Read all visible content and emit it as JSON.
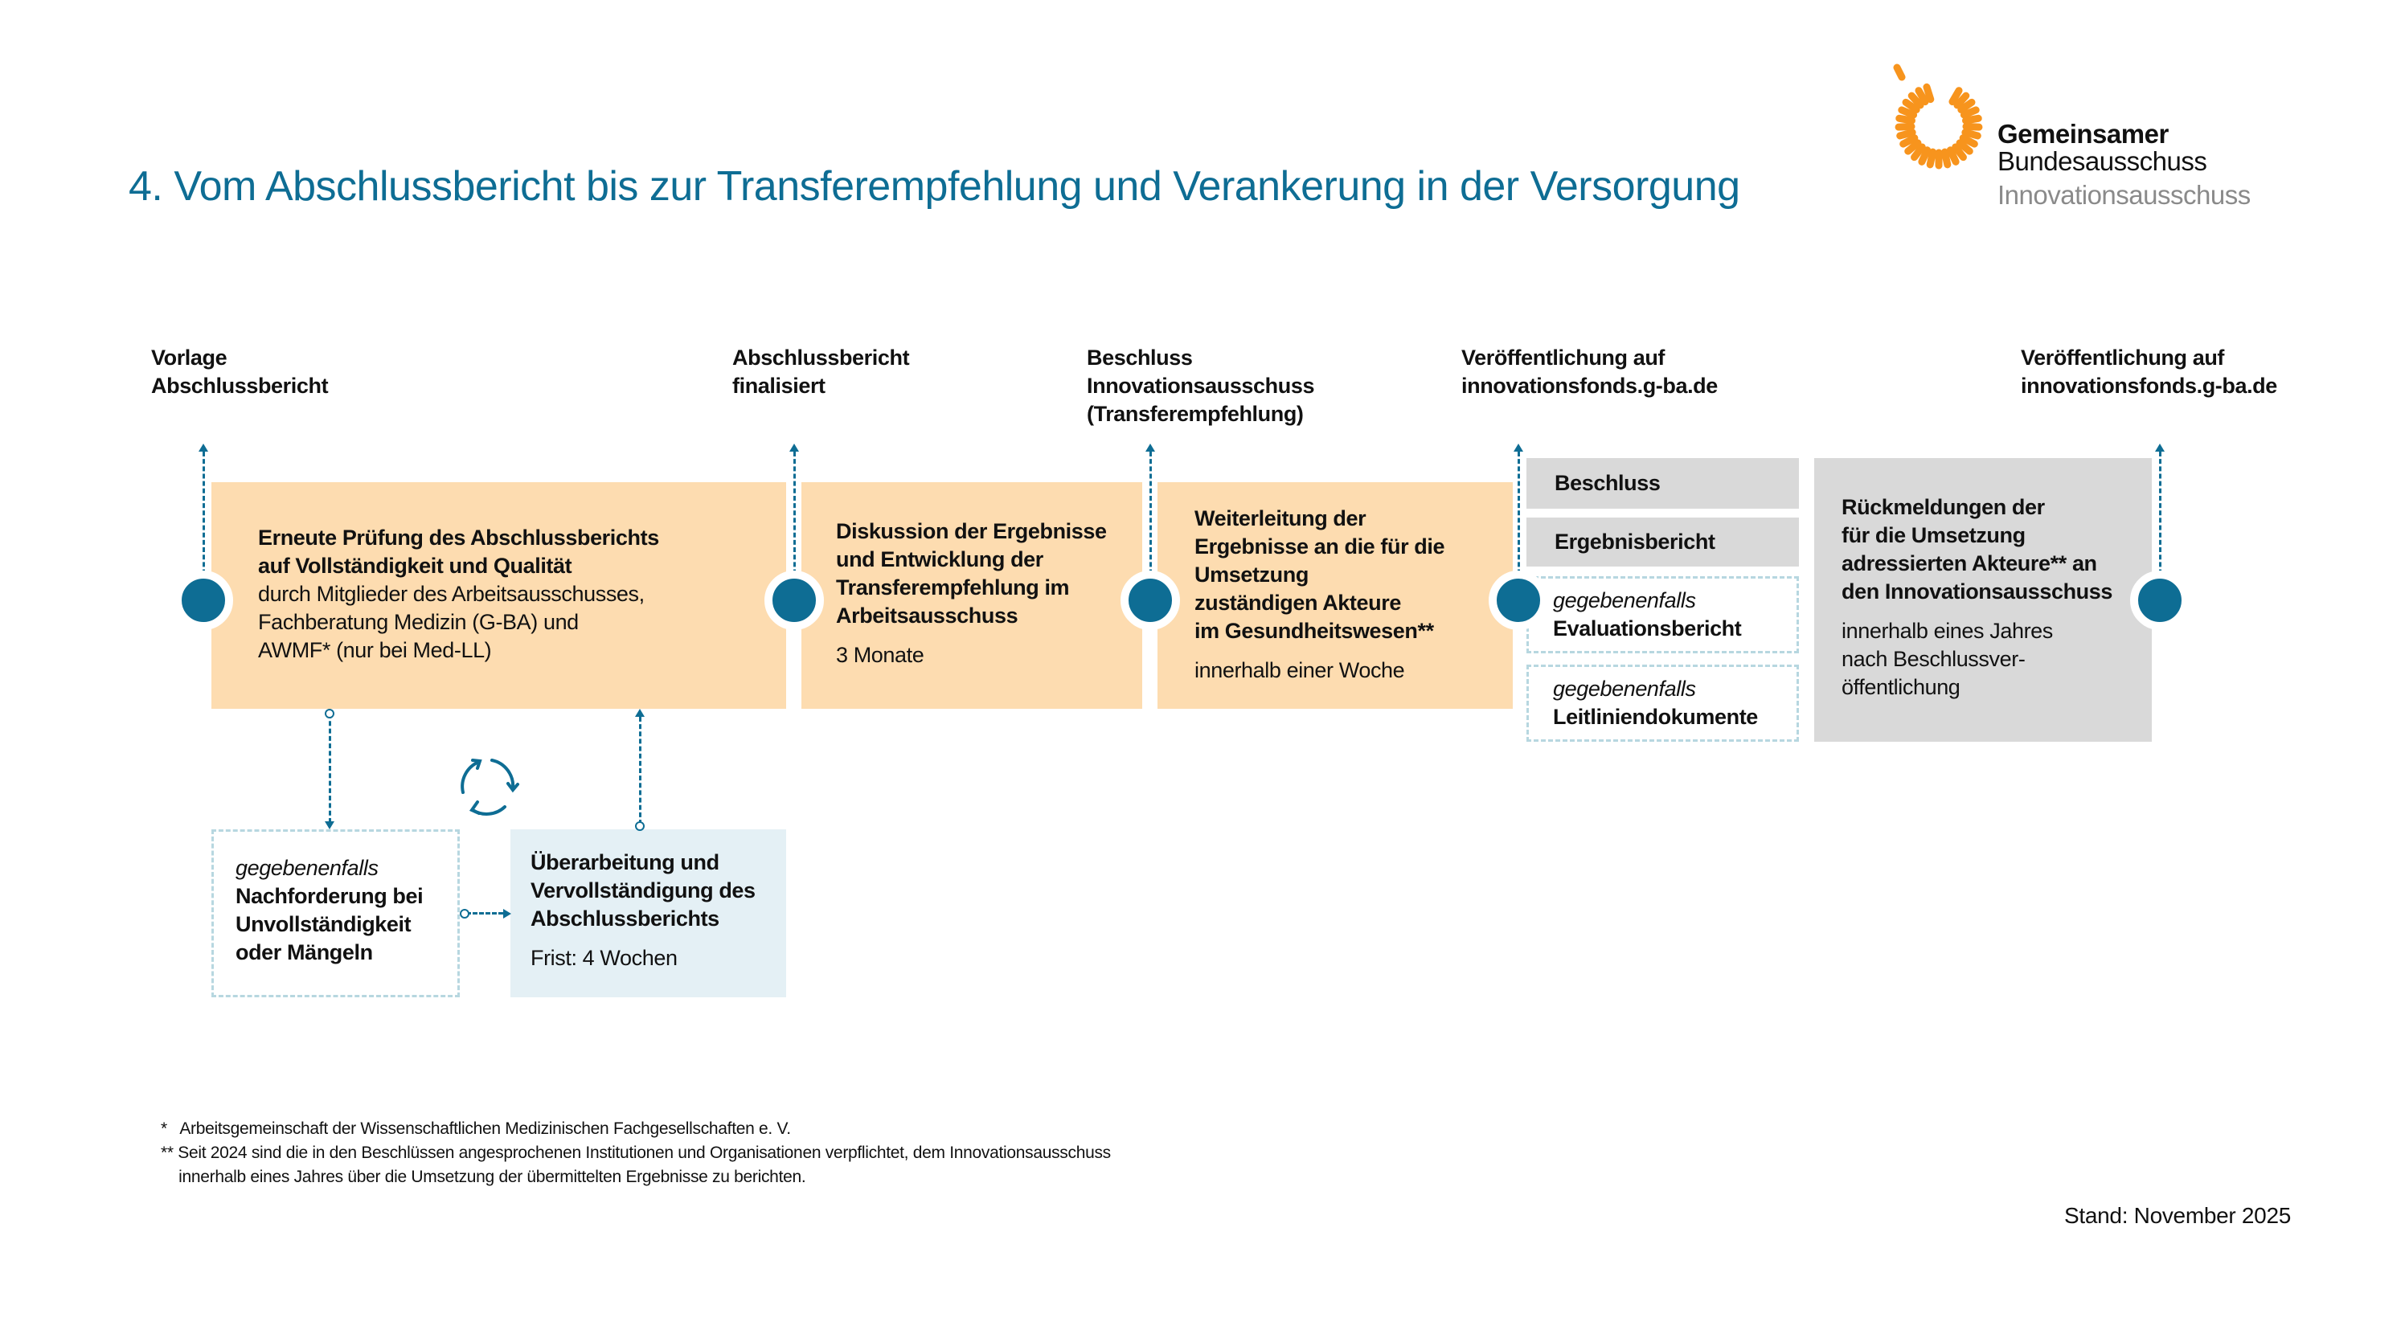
{
  "title": "4. Vom Abschlussbericht bis zur Transferempfehlung und Verankerung in der Versorgung",
  "logo": {
    "line1": "Gemeinsamer",
    "line2": "Bundesausschuss",
    "line3": "Innovationsausschuss",
    "sun_color": "#f7941d",
    "icon": "sun-logo-icon"
  },
  "colors": {
    "accent": "#0e6d94",
    "orange_box": "#fddcb0",
    "gray_box": "#d9d9d9",
    "light_blue_box": "#e4f0f5"
  },
  "milestones": [
    {
      "label": "Vorlage\nAbschlussbericht"
    },
    {
      "label": "Abschlussbericht\nfinalisiert"
    },
    {
      "label": "Beschluss\nInnovationsausschuss\n(Transferempfehlung)"
    },
    {
      "label": "Veröffentlichung auf\ninnovationsfonds.g-ba.de"
    },
    {
      "label": "Veröffentlichung auf\ninnovationsfonds.g-ba.de"
    }
  ],
  "steps": [
    {
      "bold": "Erneute Prüfung des Abschlussberichts\nauf Vollständigkeit und Qualität",
      "text": "durch Mitglieder des Arbeitsausschusses,\nFachberatung Medizin (G-BA) und\nAWMF* (nur bei Med-LL)"
    },
    {
      "bold": "Diskussion der Ergebnisse\nund Entwicklung der\nTransferempfehlung im\nArbeitsausschuss",
      "duration": "3 Monate"
    },
    {
      "bold": "Weiterleitung der\nErgebnisse an die für die\nUmsetzung\nzuständigen Akteure\nim Gesundheitswesen**",
      "duration": "innerhalb einer Woche"
    },
    {
      "bold": "Rückmeldungen der\nfür die Umsetzung\nadressierten Akteure** an\nden Innovationsausschuss",
      "duration": "innerhalb eines Jahres\nnach Beschlussver-\nöffentlichung"
    }
  ],
  "publications": [
    {
      "label": "Beschluss"
    },
    {
      "label": "Ergebnisbericht"
    },
    {
      "qualifier": "gegebenenfalls",
      "label": "Evaluationsbericht"
    },
    {
      "qualifier": "gegebenenfalls",
      "label": "Leitliniendokumente"
    }
  ],
  "loop": {
    "request": {
      "qualifier": "gegebenenfalls",
      "label": "Nachforderung bei\nUnvollständigkeit\noder Mängeln"
    },
    "revision": {
      "label": "Überarbeitung und\nVervollständigung des\nAbschlussberichts",
      "deadline": "Frist: 4 Wochen"
    },
    "icon": "cycle-arrows-icon"
  },
  "footnotes": [
    "*   Arbeitsgemeinschaft der Wissenschaftlichen Medizinischen Fachgesellschaften e. V.",
    "** Seit 2024 sind die in den Beschlüssen angesprochenen Institutionen und Organisationen verpflichtet, dem Innovationsausschuss\n    innerhalb eines Jahres über die Umsetzung der übermittelten Ergebnisse zu berichten."
  ],
  "stand": "Stand: November 2025"
}
